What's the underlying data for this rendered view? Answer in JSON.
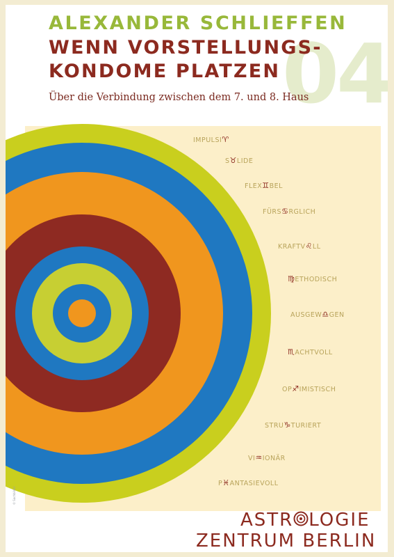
{
  "header": {
    "author": "ALEXANDER SCHLIEFFEN",
    "title_line1": "WENN VORSTELLUNGS-",
    "title_line2": "KONDOME PLATZEN",
    "subtitle": "Über die Verbindung zwischen dem 7. und 8. Haus",
    "issue_number": "04"
  },
  "sign_words": [
    {
      "before": "IMPULSI",
      "glyph": "♈",
      "after": ""
    },
    {
      "before": "S",
      "glyph": "♉",
      "after": "LIDE"
    },
    {
      "before": "FLEX",
      "glyph": "♊",
      "after": "BEL"
    },
    {
      "before": "FÜRS",
      "glyph": "♋",
      "after": "RGLICH"
    },
    {
      "before": "KRAFTV",
      "glyph": "♌",
      "after": "LL"
    },
    {
      "before": "",
      "glyph": "♍",
      "after": "ETHODISCH"
    },
    {
      "before": "AUSGEW",
      "glyph": "♎",
      "after": "GEN"
    },
    {
      "before": "",
      "glyph": "♏",
      "after": "ACHTVOLL"
    },
    {
      "before": "OP",
      "glyph": "♐",
      "after": "IMISTISCH"
    },
    {
      "before": "STRU",
      "glyph": "♑",
      "after": "TURIERT"
    },
    {
      "before": "VI",
      "glyph": "♒",
      "after": "IONÄR"
    },
    {
      "before": "P",
      "glyph": "♓",
      "after": "ANTASIEVOLL"
    }
  ],
  "credit": "© Sachbilder",
  "logo": {
    "line1_before": "ASTR",
    "line1_after": "LOGIE",
    "line2": "ZENTRUM BERLIN"
  },
  "colors": {
    "ring_outer_lime": "#c9cf1e",
    "ring_blue": "#1f78c1",
    "ring_orange": "#f0961e",
    "ring_maroon": "#8e2a22",
    "ring_green": "#c7cf33",
    "center_orange": "#f0961e",
    "title_red": "#8c2a1f",
    "author_green": "#98b83a",
    "panel_cream": "#fcefc9"
  }
}
